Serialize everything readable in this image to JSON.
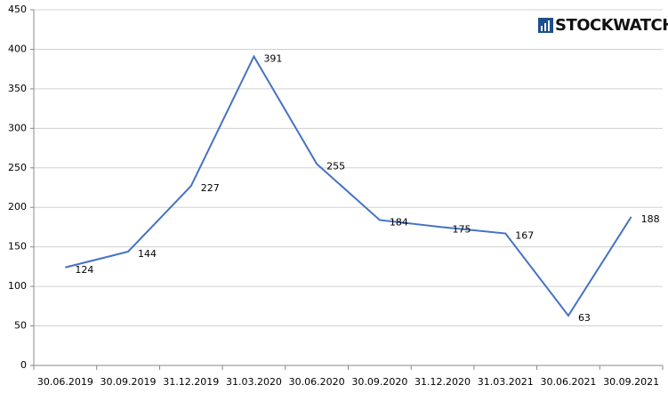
{
  "logo": "STOCKWATCH",
  "chart_data": {
    "type": "line",
    "categories": [
      "30.06.2019",
      "30.09.2019",
      "31.12.2019",
      "31.03.2020",
      "30.06.2020",
      "30.09.2020",
      "31.12.2020",
      "31.03.2021",
      "30.06.2021",
      "30.09.2021"
    ],
    "values": [
      124,
      144,
      227,
      391,
      255,
      184,
      175,
      167,
      63,
      188
    ],
    "color": "#4472c4",
    "ylim": [
      0,
      450
    ],
    "yticks": [
      0,
      50,
      100,
      150,
      200,
      250,
      300,
      350,
      400,
      450
    ],
    "grid": true
  }
}
